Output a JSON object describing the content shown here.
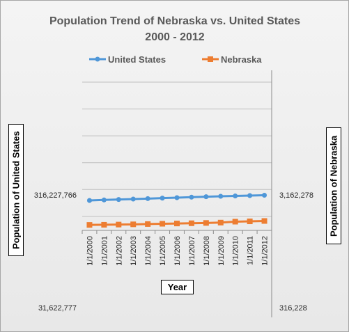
{
  "chart_data": {
    "type": "line",
    "title": "Population Trend of Nebraska vs. United States",
    "subtitle": "2000 - 2012",
    "xlabel": "Year",
    "ylabel_left": "Population of United States",
    "ylabel_right": "Population of Nebraska",
    "y_scale": "log",
    "categories": [
      "1/1/2000",
      "1/1/2001",
      "1/1/2002",
      "1/1/2003",
      "1/1/2004",
      "1/1/2005",
      "1/1/2006",
      "1/1/2007",
      "1/1/2008",
      "1/1/2009",
      "1/1/2010",
      "1/1/2011",
      "1/1/2012"
    ],
    "left_axis": {
      "ylim": [
        31622777,
        3162277660
      ],
      "tick_labels": [
        "31,622,777",
        "316,227,766"
      ],
      "tick_values": [
        31622777,
        316227766
      ]
    },
    "right_axis": {
      "ylim": [
        316228,
        31622777
      ],
      "tick_labels": [
        "316,228",
        "3,162,278"
      ],
      "tick_values": [
        316228,
        3162278
      ]
    },
    "series": [
      {
        "name": "United States",
        "axis": "left",
        "color": "#4f97d8",
        "marker": "circle",
        "values": [
          282200000,
          285100000,
          287800000,
          290500000,
          293200000,
          296000000,
          298800000,
          301700000,
          304500000,
          307300000,
          309300000,
          311600000,
          313900000
        ]
      },
      {
        "name": "Nebraska",
        "axis": "right",
        "color": "#ed7d31",
        "marker": "square",
        "values": [
          1713000,
          1718000,
          1725000,
          1733000,
          1743000,
          1753000,
          1763000,
          1772000,
          1783000,
          1796000,
          1830000,
          1842000,
          1856000
        ]
      }
    ],
    "legend": "top",
    "grid": true
  }
}
